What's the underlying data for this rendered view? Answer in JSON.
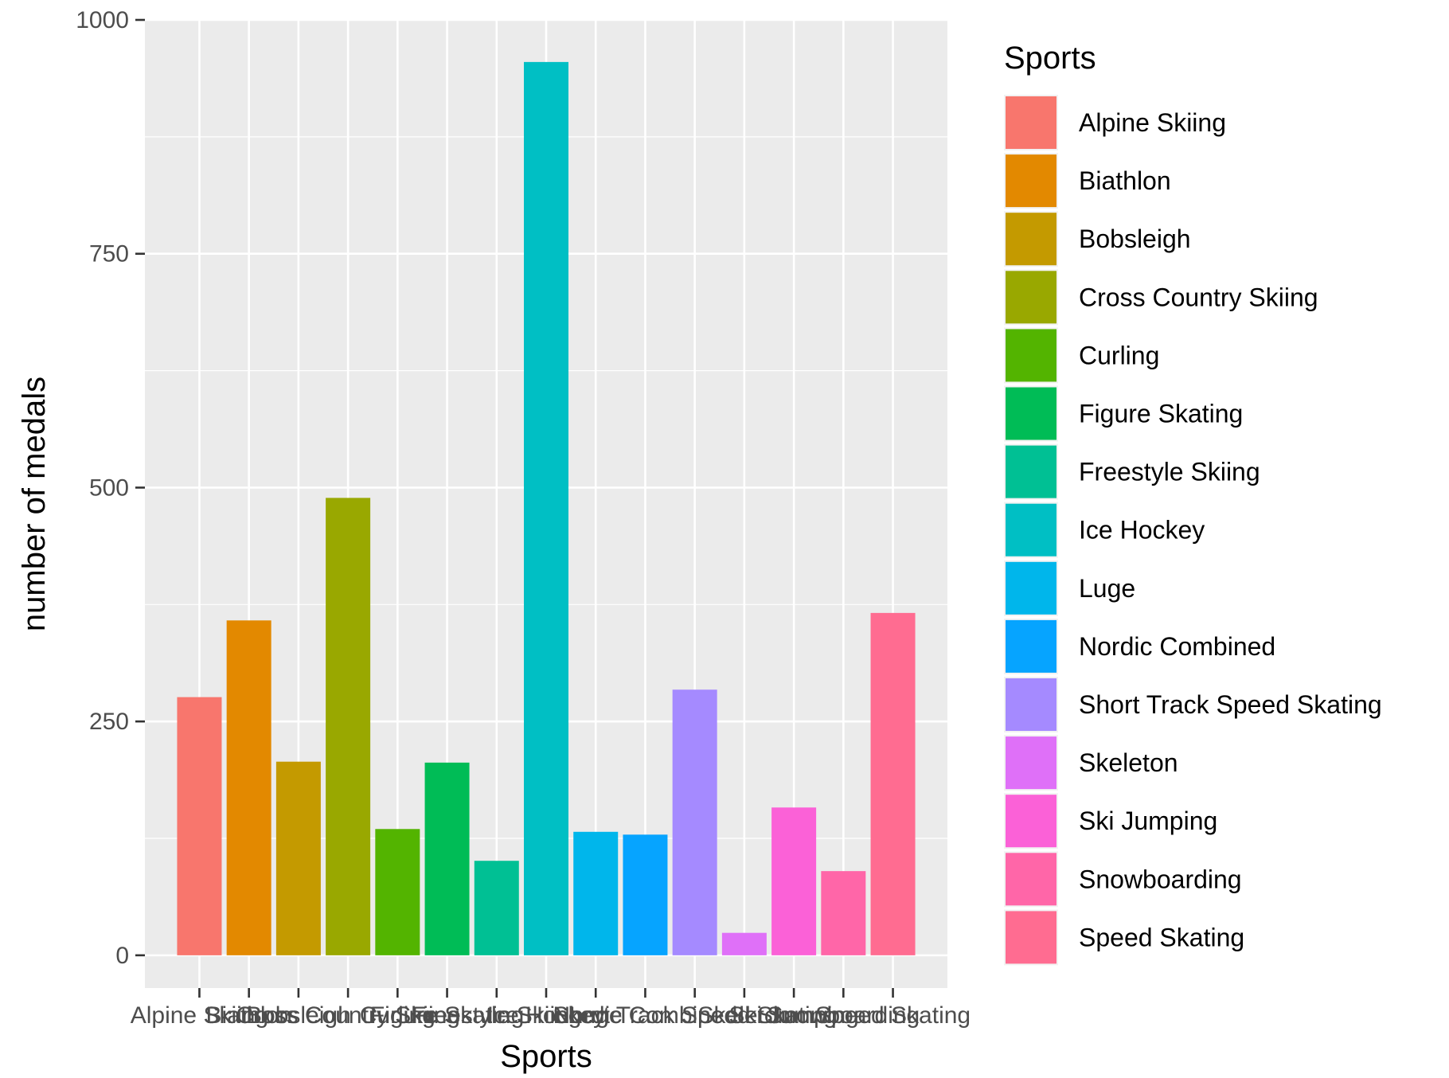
{
  "chart_data": {
    "type": "bar",
    "title": "",
    "xlabel": "Sports",
    "ylabel": "number of medals",
    "ylim": [
      -35,
      1000
    ],
    "yticks": [
      0,
      250,
      500,
      750,
      1000
    ],
    "grid": true,
    "legend_position": "right",
    "legend_title": "Sports",
    "categories": [
      "Alpine Skiing",
      "Biathlon",
      "Bobsleigh",
      "Cross Country Skiing",
      "Curling",
      "Figure Skating",
      "Freestyle Skiing",
      "Ice Hockey",
      "Luge",
      "Nordic Combined",
      "Short Track Speed Skating",
      "Skeleton",
      "Ski Jumping",
      "Snowboarding",
      "Speed Skating"
    ],
    "values": [
      276,
      358,
      207,
      489,
      135,
      206,
      101,
      955,
      132,
      129,
      284,
      24,
      158,
      90,
      366
    ],
    "colors": [
      "#F8766D",
      "#E38900",
      "#C49A00",
      "#99A800",
      "#53B400",
      "#00BC56",
      "#00C094",
      "#00BFC4",
      "#00B6EB",
      "#06A4FF",
      "#A58AFF",
      "#DF70F8",
      "#FB61D7",
      "#FF66A8",
      "#FF6C91"
    ]
  }
}
